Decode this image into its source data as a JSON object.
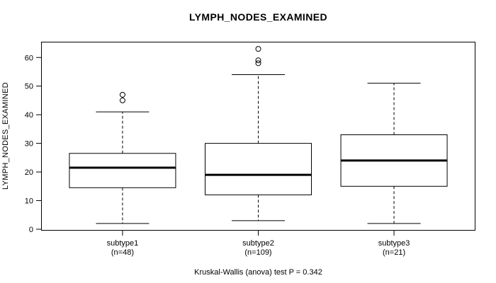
{
  "title": "LYMPH_NODES_EXAMINED",
  "caption": "Kruskal-Wallis (anova) test P = 0.342",
  "chart_data": {
    "type": "boxplot",
    "title": "LYMPH_NODES_EXAMINED",
    "xlabel": "",
    "ylabel": "LYMPH_NODES_EXAMINED",
    "caption": "Kruskal-Wallis (anova) test P = 0.342",
    "ylim": [
      -0.5,
      65.5
    ],
    "yticks": [
      0,
      10,
      20,
      30,
      40,
      50,
      60
    ],
    "grid": false,
    "legend": "none",
    "categories": [
      "subtype1",
      "subtype2",
      "subtype3"
    ],
    "category_sublabels": [
      "(n=48)",
      "(n=109)",
      "(n=21)"
    ],
    "series": [
      {
        "name": "subtype1",
        "n": 48,
        "whisker_low": 2,
        "q1": 14.5,
        "median": 21.5,
        "q3": 26.5,
        "whisker_high": 41,
        "outliers": [
          45,
          47
        ]
      },
      {
        "name": "subtype2",
        "n": 109,
        "whisker_low": 3,
        "q1": 12,
        "median": 19,
        "q3": 30,
        "whisker_high": 54,
        "outliers": [
          58,
          59,
          63
        ]
      },
      {
        "name": "subtype3",
        "n": 21,
        "whisker_low": 2,
        "q1": 15,
        "median": 24,
        "q3": 33,
        "whisker_high": 51,
        "outliers": []
      }
    ],
    "colors": {
      "line": "#000000",
      "median": "#000000",
      "box_fill": "#ffffff",
      "background": "#ffffff"
    }
  }
}
